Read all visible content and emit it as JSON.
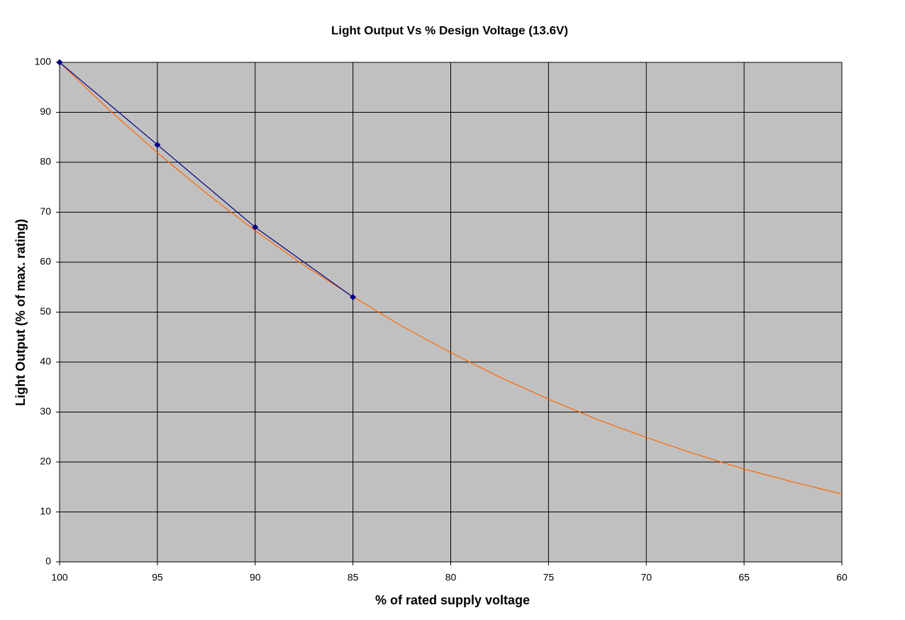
{
  "chart_data": {
    "type": "line",
    "title": "Light Output Vs % Design  Voltage (13.6V)",
    "x_label": "% of rated supply voltage",
    "y_label": "Light Output (% of max. rating)",
    "xlim": [
      100,
      60
    ],
    "xticks": [
      100,
      95,
      90,
      85,
      80,
      75,
      70,
      65,
      60
    ],
    "ylim": [
      0,
      100
    ],
    "yticks": [
      0,
      10,
      20,
      30,
      40,
      50,
      60,
      70,
      80,
      90,
      100
    ],
    "grid": true,
    "plot_background": "#c0c0c0",
    "series": [
      {
        "color": "#ff6600",
        "markers": false,
        "x": [
          100,
          97.5,
          95,
          92.5,
          90,
          87.5,
          85,
          82.5,
          80,
          77.5,
          75,
          72.5,
          70,
          67.5,
          65,
          62.5,
          60
        ],
        "values": [
          100,
          90.6,
          81.9,
          73.8,
          66.3,
          59.4,
          53.1,
          47.2,
          41.9,
          37.0,
          32.6,
          28.5,
          24.9,
          21.6,
          18.6,
          16.0,
          13.6
        ]
      },
      {
        "color": "#000080",
        "markers": true,
        "x": [
          100,
          95,
          90,
          85
        ],
        "values": [
          100,
          83.5,
          67,
          53
        ]
      }
    ]
  }
}
